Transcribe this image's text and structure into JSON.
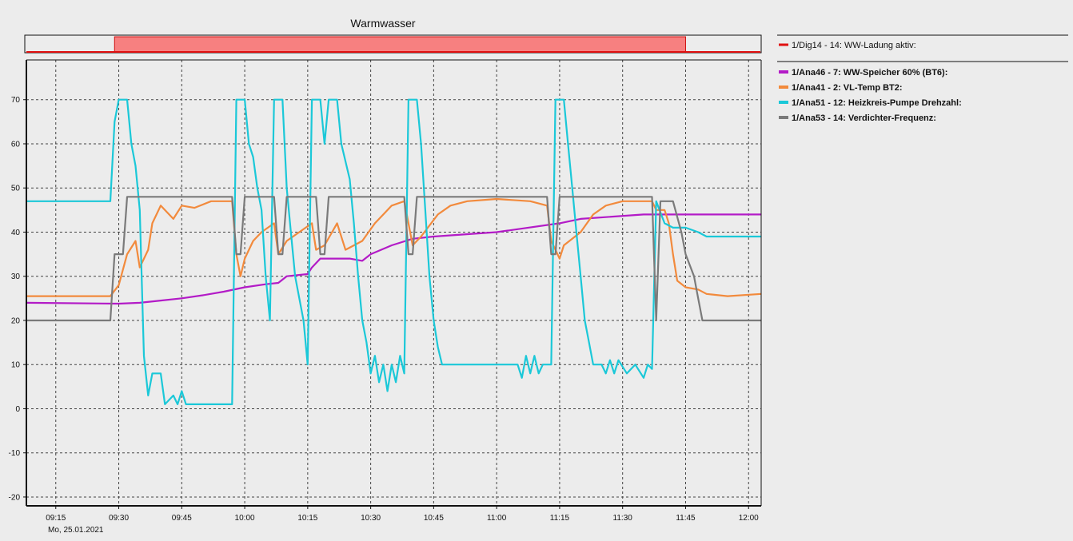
{
  "chart_data": [
    {
      "type": "area",
      "title": "Warmwasser",
      "digital_series": {
        "name": "1/Dig14 - 14: WW-Ladung aktiv:",
        "color": "#e01010",
        "fill": "#f78080",
        "active_intervals": [
          [
            "09:29",
            "11:45"
          ]
        ]
      }
    },
    {
      "type": "line",
      "x_ticks": [
        "09:15",
        "09:30",
        "09:45",
        "10:00",
        "10:15",
        "10:30",
        "10:45",
        "11:00",
        "11:15",
        "11:30",
        "11:45",
        "12:00"
      ],
      "x_date_label": "Mo, 25.01.2021",
      "xlim": [
        "09:08",
        "12:03"
      ],
      "ylim": [
        -22,
        79
      ],
      "y_ticks": [
        70,
        60,
        50,
        40,
        30,
        20,
        10,
        0,
        -10,
        -20
      ],
      "grid": true,
      "legend_position": "right",
      "series": [
        {
          "name": "1/Ana46 - 7: WW-Speicher 60% (BT6):",
          "color": "#b31bc7",
          "points": [
            [
              "09:08",
              24
            ],
            [
              "09:30",
              23.8
            ],
            [
              "09:35",
              24
            ],
            [
              "09:40",
              24.5
            ],
            [
              "09:45",
              25
            ],
            [
              "09:50",
              25.7
            ],
            [
              "09:55",
              26.5
            ],
            [
              "10:00",
              27.5
            ],
            [
              "10:05",
              28.2
            ],
            [
              "10:08",
              28.5
            ],
            [
              "10:10",
              30
            ],
            [
              "10:15",
              30.5
            ],
            [
              "10:16",
              32
            ],
            [
              "10:18",
              34
            ],
            [
              "10:25",
              34
            ],
            [
              "10:28",
              33.5
            ],
            [
              "10:30",
              35
            ],
            [
              "10:35",
              37
            ],
            [
              "10:40",
              38.5
            ],
            [
              "10:45",
              39
            ],
            [
              "11:00",
              40
            ],
            [
              "11:15",
              42
            ],
            [
              "11:20",
              43
            ],
            [
              "11:35",
              44
            ],
            [
              "11:45",
              44
            ],
            [
              "12:03",
              44
            ]
          ]
        },
        {
          "name": "1/Ana41 - 2: VL-Temp BT2:",
          "color": "#f28a3c",
          "points": [
            [
              "09:08",
              25.5
            ],
            [
              "09:28",
              25.5
            ],
            [
              "09:30",
              28
            ],
            [
              "09:32",
              35
            ],
            [
              "09:34",
              38
            ],
            [
              "09:35",
              32
            ],
            [
              "09:37",
              36
            ],
            [
              "09:38",
              42
            ],
            [
              "09:40",
              46
            ],
            [
              "09:43",
              43
            ],
            [
              "09:45",
              46
            ],
            [
              "09:48",
              45.5
            ],
            [
              "09:52",
              47
            ],
            [
              "09:57",
              47
            ],
            [
              "09:58",
              35
            ],
            [
              "09:59",
              30
            ],
            [
              "10:00",
              34
            ],
            [
              "10:02",
              38
            ],
            [
              "10:04",
              40
            ],
            [
              "10:07",
              42
            ],
            [
              "10:08",
              35
            ],
            [
              "10:10",
              38
            ],
            [
              "10:13",
              40
            ],
            [
              "10:16",
              42
            ],
            [
              "10:17",
              36
            ],
            [
              "10:19",
              37
            ],
            [
              "10:22",
              42
            ],
            [
              "10:24",
              36
            ],
            [
              "10:28",
              38
            ],
            [
              "10:31",
              42
            ],
            [
              "10:33",
              44
            ],
            [
              "10:35",
              46
            ],
            [
              "10:38",
              47
            ],
            [
              "10:40",
              37
            ],
            [
              "10:42",
              39
            ],
            [
              "10:46",
              44
            ],
            [
              "10:49",
              46
            ],
            [
              "10:53",
              47
            ],
            [
              "11:00",
              47.5
            ],
            [
              "11:08",
              47
            ],
            [
              "11:12",
              46
            ],
            [
              "11:13",
              38
            ],
            [
              "11:15",
              34
            ],
            [
              "11:16",
              37
            ],
            [
              "11:20",
              40
            ],
            [
              "11:23",
              44
            ],
            [
              "11:26",
              46
            ],
            [
              "11:30",
              47
            ],
            [
              "11:37",
              47
            ],
            [
              "11:38",
              45
            ],
            [
              "11:40",
              45
            ],
            [
              "11:41",
              42
            ],
            [
              "11:42",
              35
            ],
            [
              "11:43",
              29
            ],
            [
              "11:45",
              27.5
            ],
            [
              "11:48",
              27
            ],
            [
              "11:50",
              26
            ],
            [
              "11:55",
              25.5
            ],
            [
              "12:03",
              26
            ]
          ]
        },
        {
          "name": "1/Ana51 - 12: Heizkreis-Pumpe Drehzahl:",
          "color": "#1bc8d8",
          "points": [
            [
              "09:08",
              47
            ],
            [
              "09:28",
              47
            ],
            [
              "09:29",
              65
            ],
            [
              "09:30",
              70
            ],
            [
              "09:32",
              70
            ],
            [
              "09:33",
              60
            ],
            [
              "09:34",
              55
            ],
            [
              "09:35",
              45
            ],
            [
              "09:36",
              12
            ],
            [
              "09:37",
              3
            ],
            [
              "09:38",
              8
            ],
            [
              "09:40",
              8
            ],
            [
              "09:41",
              1
            ],
            [
              "09:43",
              3
            ],
            [
              "09:44",
              1
            ],
            [
              "09:45",
              4
            ],
            [
              "09:46",
              1
            ],
            [
              "09:57",
              1
            ],
            [
              "09:58",
              70
            ],
            [
              "10:00",
              70
            ],
            [
              "10:01",
              60
            ],
            [
              "10:02",
              57
            ],
            [
              "10:03",
              50
            ],
            [
              "10:04",
              45
            ],
            [
              "10:05",
              30
            ],
            [
              "10:06",
              20
            ],
            [
              "10:07",
              70
            ],
            [
              "10:09",
              70
            ],
            [
              "10:10",
              50
            ],
            [
              "10:11",
              40
            ],
            [
              "10:12",
              30
            ],
            [
              "10:14",
              20
            ],
            [
              "10:15",
              10
            ],
            [
              "10:16",
              70
            ],
            [
              "10:18",
              70
            ],
            [
              "10:19",
              60
            ],
            [
              "10:20",
              70
            ],
            [
              "10:22",
              70
            ],
            [
              "10:23",
              60
            ],
            [
              "10:25",
              52
            ],
            [
              "10:26",
              42
            ],
            [
              "10:27",
              30
            ],
            [
              "10:28",
              20
            ],
            [
              "10:29",
              15
            ],
            [
              "10:30",
              8
            ],
            [
              "10:31",
              12
            ],
            [
              "10:32",
              6
            ],
            [
              "10:33",
              10
            ],
            [
              "10:34",
              4
            ],
            [
              "10:35",
              10
            ],
            [
              "10:36",
              6
            ],
            [
              "10:37",
              12
            ],
            [
              "10:38",
              8
            ],
            [
              "10:39",
              70
            ],
            [
              "10:41",
              70
            ],
            [
              "10:42",
              60
            ],
            [
              "10:43",
              45
            ],
            [
              "10:44",
              30
            ],
            [
              "10:45",
              20
            ],
            [
              "10:46",
              14
            ],
            [
              "10:47",
              10
            ],
            [
              "10:55",
              10
            ],
            [
              "11:05",
              10
            ],
            [
              "11:06",
              7
            ],
            [
              "11:07",
              12
            ],
            [
              "11:08",
              8
            ],
            [
              "11:09",
              12
            ],
            [
              "11:10",
              8
            ],
            [
              "11:11",
              10
            ],
            [
              "11:13",
              10
            ],
            [
              "11:14",
              70
            ],
            [
              "11:16",
              70
            ],
            [
              "11:17",
              60
            ],
            [
              "11:18",
              50
            ],
            [
              "11:19",
              40
            ],
            [
              "11:20",
              30
            ],
            [
              "11:21",
              20
            ],
            [
              "11:22",
              15
            ],
            [
              "11:23",
              10
            ],
            [
              "11:25",
              10
            ],
            [
              "11:26",
              8
            ],
            [
              "11:27",
              11
            ],
            [
              "11:28",
              8
            ],
            [
              "11:29",
              11
            ],
            [
              "11:31",
              8
            ],
            [
              "11:33",
              10
            ],
            [
              "11:35",
              7
            ],
            [
              "11:36",
              10
            ],
            [
              "11:37",
              9
            ],
            [
              "11:38",
              47
            ],
            [
              "11:40",
              42
            ],
            [
              "11:42",
              41
            ],
            [
              "11:45",
              41
            ],
            [
              "11:48",
              40
            ],
            [
              "11:50",
              39
            ],
            [
              "12:03",
              39
            ]
          ]
        },
        {
          "name": "1/Ana53 - 14: Verdichter-Frequenz:",
          "color": "#7a7a7a",
          "points": [
            [
              "09:08",
              20
            ],
            [
              "09:28",
              20
            ],
            [
              "09:29",
              35
            ],
            [
              "09:31",
              35
            ],
            [
              "09:32",
              48
            ],
            [
              "09:57",
              48
            ],
            [
              "09:58",
              35
            ],
            [
              "09:59",
              35
            ],
            [
              "10:00",
              48
            ],
            [
              "10:07",
              48
            ],
            [
              "10:08",
              35
            ],
            [
              "10:09",
              35
            ],
            [
              "10:10",
              48
            ],
            [
              "10:17",
              48
            ],
            [
              "10:18",
              35
            ],
            [
              "10:19",
              35
            ],
            [
              "10:20",
              48
            ],
            [
              "10:24",
              48
            ],
            [
              "10:25",
              48
            ],
            [
              "10:38",
              48
            ],
            [
              "10:39",
              35
            ],
            [
              "10:40",
              35
            ],
            [
              "10:41",
              48
            ],
            [
              "11:12",
              48
            ],
            [
              "11:13",
              35
            ],
            [
              "11:14",
              35
            ],
            [
              "11:15",
              48
            ],
            [
              "11:37",
              48
            ],
            [
              "11:38",
              20
            ],
            [
              "11:39",
              47
            ],
            [
              "11:42",
              47
            ],
            [
              "11:44",
              40
            ],
            [
              "11:45",
              35
            ],
            [
              "11:47",
              30
            ],
            [
              "11:48",
              25
            ],
            [
              "11:49",
              20
            ],
            [
              "12:03",
              20
            ]
          ]
        }
      ]
    }
  ]
}
